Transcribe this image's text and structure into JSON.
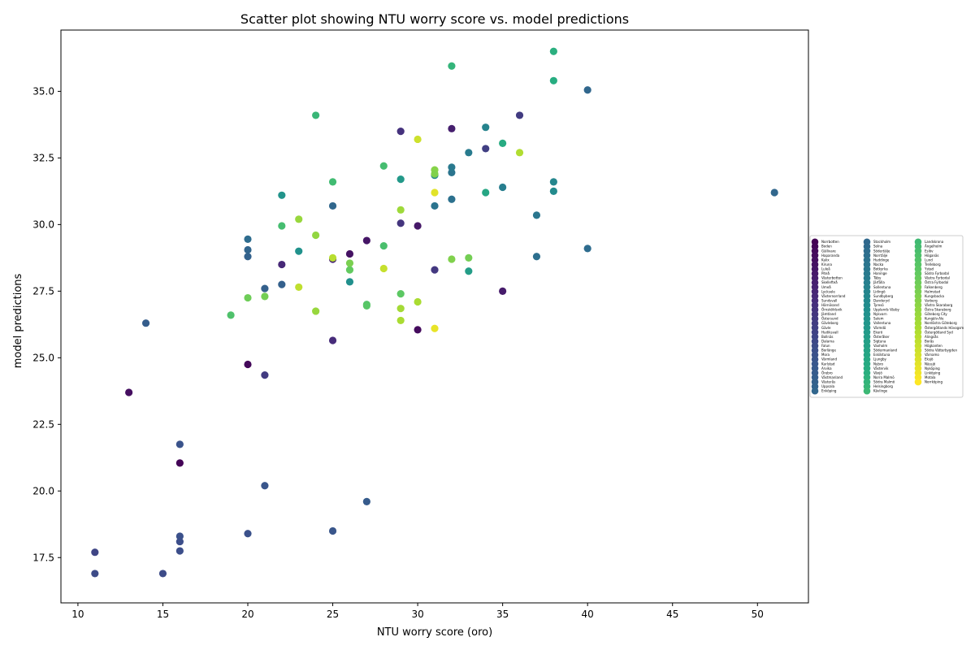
{
  "chart_data": {
    "type": "scatter",
    "title": "Scatter plot showing NTU worry score vs. model predictions",
    "xlabel": "NTU worry score (oro)",
    "ylabel": "model predictions",
    "xlim": [
      9,
      53
    ],
    "ylim": [
      15.8,
      37.3
    ],
    "xticks": [
      10,
      15,
      20,
      25,
      30,
      35,
      40,
      45,
      50
    ],
    "yticks": [
      17.5,
      20.0,
      22.5,
      25.0,
      27.5,
      30.0,
      32.5,
      35.0
    ],
    "grid": false,
    "legend_position": "right",
    "colormap": "viridis",
    "legend": [
      "Norrbotten",
      "Boden",
      "Gällivare",
      "Haparanda",
      "Kalix",
      "Kiruna",
      "Luleå",
      "Piteå",
      "Västerbotten",
      "Skellefteå",
      "Umeå",
      "Lycksele",
      "Västernorrland",
      "Sundsvall",
      "Härnösand",
      "Örnsköldsvik",
      "Jämtland",
      "Östersund",
      "Gävleborg",
      "Gävle",
      "Hudiksvall",
      "Bollnäs",
      "Dalarna",
      "Falun",
      "Borlänge",
      "Mora",
      "Värmland",
      "Karlstad",
      "Arvika",
      "Örebro",
      "Västmanland",
      "Västerås",
      "Uppsala",
      "Enköping",
      "Stockholm",
      "Solna",
      "Södertälje",
      "Norrtälje",
      "Huddinge",
      "Nacka",
      "Botkyrka",
      "Haninge",
      "Täby",
      "Järfälla",
      "Sollentuna",
      "Lidingö",
      "Sundbyberg",
      "Danderyd",
      "Tyresö",
      "Upplands Väsby",
      "Nykvarn",
      "Salem",
      "Vallentuna",
      "Värmdö",
      "Ekerö",
      "Österåker",
      "Sigtuna",
      "Vaxholm",
      "Södermanland",
      "Eskilstuna",
      "Ljungby",
      "Nybro",
      "Västervik",
      "Växjö",
      "Norra Malmö",
      "Södra Malmö",
      "Helsingborg",
      "Kävlinge",
      "Landskrona",
      "Ängelholm",
      "Eslöv",
      "Höganäs",
      "Lund",
      "Trelleborg",
      "Ystad",
      "Södra Fyrbodal",
      "Västra Fyrbodal",
      "Östra Fyrbodal",
      "Falkenberg",
      "Halmstad",
      "Kungsbacka",
      "Varberg",
      "Västra Skaraborg",
      "Östra Skaraborg",
      "Göteborg City",
      "Kungälv-Ale",
      "Nordöstra Göteborg",
      "Östergötlands Hövogsm",
      "Östergötland Syd",
      "Alingsås",
      "Borås",
      "Högkanten",
      "Södra Vätterbygden",
      "Värnamo",
      "Eksjö",
      "Nässjö",
      "Nyköping",
      "Linköping",
      "Motala",
      "Norrköping"
    ],
    "series": [
      {
        "x": 16,
        "y": 21.05,
        "c": 0.01
      },
      {
        "x": 20,
        "y": 24.75,
        "c": 0.02
      },
      {
        "x": 13,
        "y": 23.7,
        "c": 0.04
      },
      {
        "x": 26,
        "y": 28.9,
        "c": 0.05
      },
      {
        "x": 27,
        "y": 29.4,
        "c": 0.06
      },
      {
        "x": 30,
        "y": 29.95,
        "c": 0.07
      },
      {
        "x": 30,
        "y": 26.05,
        "c": 0.03
      },
      {
        "x": 35,
        "y": 27.5,
        "c": 0.08
      },
      {
        "x": 32,
        "y": 33.6,
        "c": 0.09
      },
      {
        "x": 22,
        "y": 28.5,
        "c": 0.12
      },
      {
        "x": 25,
        "y": 25.65,
        "c": 0.13
      },
      {
        "x": 29,
        "y": 33.5,
        "c": 0.15
      },
      {
        "x": 29,
        "y": 30.05,
        "c": 0.16
      },
      {
        "x": 31,
        "y": 28.3,
        "c": 0.17
      },
      {
        "x": 21,
        "y": 24.35,
        "c": 0.18
      },
      {
        "x": 36,
        "y": 34.1,
        "c": 0.18
      },
      {
        "x": 34,
        "y": 32.85,
        "c": 0.19
      },
      {
        "x": 25,
        "y": 28.7,
        "c": 0.1
      },
      {
        "x": 11,
        "y": 17.7,
        "c": 0.21
      },
      {
        "x": 11,
        "y": 16.9,
        "c": 0.23
      },
      {
        "x": 15,
        "y": 16.9,
        "c": 0.23
      },
      {
        "x": 16,
        "y": 17.75,
        "c": 0.24
      },
      {
        "x": 16,
        "y": 18.1,
        "c": 0.24
      },
      {
        "x": 16,
        "y": 18.3,
        "c": 0.25
      },
      {
        "x": 16,
        "y": 21.75,
        "c": 0.26
      },
      {
        "x": 20,
        "y": 18.4,
        "c": 0.25
      },
      {
        "x": 21,
        "y": 20.2,
        "c": 0.27
      },
      {
        "x": 25,
        "y": 18.5,
        "c": 0.27
      },
      {
        "x": 27,
        "y": 19.6,
        "c": 0.29
      },
      {
        "x": 14,
        "y": 26.3,
        "c": 0.3
      },
      {
        "x": 21,
        "y": 27.6,
        "c": 0.31
      },
      {
        "x": 22,
        "y": 27.75,
        "c": 0.31
      },
      {
        "x": 20,
        "y": 28.8,
        "c": 0.32
      },
      {
        "x": 20,
        "y": 29.05,
        "c": 0.33
      },
      {
        "x": 20,
        "y": 29.45,
        "c": 0.36
      },
      {
        "x": 25,
        "y": 30.7,
        "c": 0.34
      },
      {
        "x": 40,
        "y": 35.05,
        "c": 0.34
      },
      {
        "x": 51,
        "y": 31.2,
        "c": 0.34
      },
      {
        "x": 40,
        "y": 29.1,
        "c": 0.36
      },
      {
        "x": 37,
        "y": 28.8,
        "c": 0.37
      },
      {
        "x": 37,
        "y": 30.35,
        "c": 0.4
      },
      {
        "x": 32,
        "y": 30.95,
        "c": 0.38
      },
      {
        "x": 31,
        "y": 30.7,
        "c": 0.39
      },
      {
        "x": 32,
        "y": 31.95,
        "c": 0.39
      },
      {
        "x": 32,
        "y": 32.15,
        "c": 0.41
      },
      {
        "x": 33,
        "y": 32.7,
        "c": 0.42
      },
      {
        "x": 34,
        "y": 33.65,
        "c": 0.45
      },
      {
        "x": 38,
        "y": 31.6,
        "c": 0.46
      },
      {
        "x": 38,
        "y": 31.25,
        "c": 0.48
      },
      {
        "x": 35,
        "y": 31.4,
        "c": 0.43
      },
      {
        "x": 31,
        "y": 31.85,
        "c": 0.47
      },
      {
        "x": 26,
        "y": 27.85,
        "c": 0.5
      },
      {
        "x": 23,
        "y": 29.0,
        "c": 0.51
      },
      {
        "x": 22,
        "y": 31.1,
        "c": 0.52
      },
      {
        "x": 29,
        "y": 31.7,
        "c": 0.54
      },
      {
        "x": 33,
        "y": 28.25,
        "c": 0.56
      },
      {
        "x": 34,
        "y": 31.2,
        "c": 0.6
      },
      {
        "x": 35,
        "y": 33.05,
        "c": 0.62
      },
      {
        "x": 38,
        "y": 35.4,
        "c": 0.63
      },
      {
        "x": 38,
        "y": 36.5,
        "c": 0.64
      },
      {
        "x": 32,
        "y": 35.95,
        "c": 0.66
      },
      {
        "x": 24,
        "y": 34.1,
        "c": 0.67
      },
      {
        "x": 25,
        "y": 31.6,
        "c": 0.69
      },
      {
        "x": 28,
        "y": 32.2,
        "c": 0.7
      },
      {
        "x": 22,
        "y": 29.95,
        "c": 0.7
      },
      {
        "x": 28,
        "y": 29.2,
        "c": 0.71
      },
      {
        "x": 19,
        "y": 26.6,
        "c": 0.72
      },
      {
        "x": 27,
        "y": 27.0,
        "c": 0.73
      },
      {
        "x": 27,
        "y": 26.95,
        "c": 0.74
      },
      {
        "x": 29,
        "y": 27.4,
        "c": 0.75
      },
      {
        "x": 26,
        "y": 28.3,
        "c": 0.76
      },
      {
        "x": 20,
        "y": 27.25,
        "c": 0.78
      },
      {
        "x": 21,
        "y": 27.3,
        "c": 0.79
      },
      {
        "x": 26,
        "y": 28.55,
        "c": 0.8
      },
      {
        "x": 32,
        "y": 28.7,
        "c": 0.81
      },
      {
        "x": 33,
        "y": 28.75,
        "c": 0.79
      },
      {
        "x": 31,
        "y": 32.05,
        "c": 0.82
      },
      {
        "x": 31,
        "y": 31.9,
        "c": 0.81
      },
      {
        "x": 24,
        "y": 29.6,
        "c": 0.84
      },
      {
        "x": 23,
        "y": 30.2,
        "c": 0.85
      },
      {
        "x": 24,
        "y": 26.75,
        "c": 0.85
      },
      {
        "x": 29,
        "y": 30.55,
        "c": 0.86
      },
      {
        "x": 29,
        "y": 26.85,
        "c": 0.87
      },
      {
        "x": 29,
        "y": 26.4,
        "c": 0.88
      },
      {
        "x": 30,
        "y": 27.1,
        "c": 0.88
      },
      {
        "x": 36,
        "y": 32.7,
        "c": 0.89
      },
      {
        "x": 25,
        "y": 28.75,
        "c": 0.9
      },
      {
        "x": 23,
        "y": 27.65,
        "c": 0.91
      },
      {
        "x": 28,
        "y": 28.35,
        "c": 0.92
      },
      {
        "x": 30,
        "y": 33.2,
        "c": 0.93
      },
      {
        "x": 31,
        "y": 31.2,
        "c": 0.96
      },
      {
        "x": 31,
        "y": 26.1,
        "c": 0.97
      }
    ]
  }
}
